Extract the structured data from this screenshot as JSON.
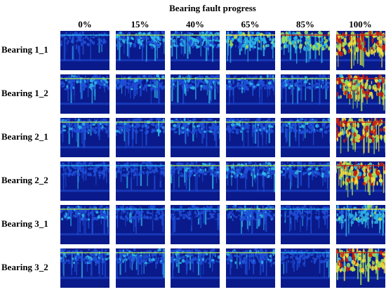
{
  "title": "Bearing fault progress",
  "columns": [
    "0%",
    "15%",
    "40%",
    "65%",
    "85%",
    "100%"
  ],
  "rows": [
    "Bearing 1_1",
    "Bearing 1_2",
    "Bearing 2_1",
    "Bearing 2_2",
    "Bearing 3_1",
    "Bearing 3_2"
  ],
  "colors": {
    "background": "#ffffff",
    "low": "#0a1a8a",
    "mid_low": "#1f4fd8",
    "mid": "#2fb8e8",
    "mid_high": "#9fe05a",
    "high": "#f6e23c",
    "max": "#c81e0e"
  },
  "intensity": [
    [
      0.3,
      0.4,
      0.45,
      0.55,
      0.65,
      1.0
    ],
    [
      0.35,
      0.35,
      0.35,
      0.35,
      0.35,
      0.95
    ],
    [
      0.35,
      0.35,
      0.35,
      0.35,
      0.35,
      0.95
    ],
    [
      0.3,
      0.3,
      0.35,
      0.4,
      0.35,
      0.9
    ],
    [
      0.35,
      0.3,
      0.3,
      0.35,
      0.3,
      0.55
    ],
    [
      0.35,
      0.35,
      0.35,
      0.35,
      0.3,
      0.9
    ]
  ]
}
